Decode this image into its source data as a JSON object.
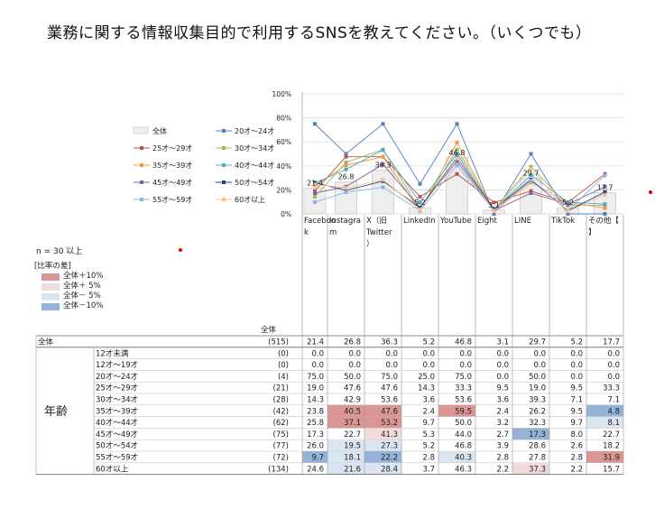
{
  "title": "業務に関する情報収集目的で利用するSNSを教えてください。（いくつでも）",
  "n_note": "n = 30 以上",
  "diff_legend": {
    "title": "[比率の差]",
    "items": [
      {
        "label": "全体＋10%",
        "color": "#d99694"
      },
      {
        "label": "全体＋ 5%",
        "color": "#f2dcdb"
      },
      {
        "label": "全体－ 5%",
        "color": "#dbe5f1"
      },
      {
        "label": "全体－10%",
        "color": "#95b3d7"
      }
    ]
  },
  "row_header": "全体",
  "group_label": "年齢",
  "chart_data": {
    "type": "bar",
    "categories": [
      "Facebook",
      "Instagram",
      "X（旧Twitter）",
      "LinkedIn",
      "YouTube",
      "Eight",
      "LINE",
      "TikTok",
      "その他【】"
    ],
    "category_display": [
      "Faceboo|k",
      "Instagra|m",
      "X（旧|Twitter|）",
      "LinkedIn",
      "YouTube",
      "Eight",
      "LINE",
      "TikTok",
      "その他【|】"
    ],
    "ylim": [
      0,
      100
    ],
    "yticks": [
      "0%",
      "20%",
      "40%",
      "60%",
      "80%",
      "100%"
    ],
    "bar_series": {
      "name": "全体",
      "n": "(515)",
      "values": [
        21.4,
        26.8,
        36.3,
        5.2,
        46.8,
        3.1,
        29.7,
        5.2,
        17.7
      ],
      "color": "#eeeeee"
    },
    "line_series": [
      {
        "name": "20才～24才",
        "color": "#4f81bd",
        "values": [
          75.0,
          50.0,
          75.0,
          25.0,
          75.0,
          0.0,
          50.0,
          0.0,
          0.0
        ]
      },
      {
        "name": "25才～29才",
        "color": "#c0504d",
        "values": [
          19.0,
          47.6,
          47.6,
          14.3,
          33.3,
          9.5,
          19.0,
          9.5,
          33.3
        ]
      },
      {
        "name": "30才～34才",
        "color": "#9bbb59",
        "values": [
          14.3,
          42.9,
          53.6,
          3.6,
          53.6,
          3.6,
          39.3,
          7.1,
          7.1
        ]
      },
      {
        "name": "35才～39才",
        "color": "#f79646",
        "values": [
          23.8,
          40.5,
          47.6,
          2.4,
          59.5,
          2.4,
          26.2,
          9.5,
          4.8
        ]
      },
      {
        "name": "40才～44才",
        "color": "#4bacc6",
        "values": [
          25.8,
          37.1,
          53.2,
          9.7,
          50.0,
          3.2,
          32.3,
          9.7,
          8.1
        ]
      },
      {
        "name": "45才～49才",
        "color": "#8064a2",
        "values": [
          17.3,
          22.7,
          41.3,
          5.3,
          44.0,
          2.7,
          17.3,
          8.0,
          22.7
        ]
      },
      {
        "name": "50才～54才",
        "color": "#1f497d",
        "values": [
          26.0,
          19.5,
          27.3,
          5.2,
          46.8,
          3.9,
          28.6,
          2.6,
          18.2
        ]
      },
      {
        "name": "55才～59才",
        "color": "#8db3e2",
        "values": [
          9.7,
          18.1,
          22.2,
          2.8,
          40.3,
          2.8,
          27.8,
          2.8,
          31.9
        ]
      },
      {
        "name": "60才以上",
        "color": "#fac090",
        "values": [
          24.6,
          21.6,
          28.4,
          3.7,
          46.3,
          2.2,
          37.3,
          2.2,
          15.7
        ]
      }
    ]
  },
  "table_rows": [
    {
      "label": "12才未満",
      "n": "(0)",
      "values": [
        "0.0",
        "0.0",
        "0.0",
        "0.0",
        "0.0",
        "0.0",
        "0.0",
        "0.0",
        "0.0"
      ],
      "hl": [
        "",
        "",
        "",
        "",
        "",
        "",
        "",
        "",
        ""
      ]
    },
    {
      "label": "12才～19才",
      "n": "(0)",
      "values": [
        "0.0",
        "0.0",
        "0.0",
        "0.0",
        "0.0",
        "0.0",
        "0.0",
        "0.0",
        "0.0"
      ],
      "hl": [
        "",
        "",
        "",
        "",
        "",
        "",
        "",
        "",
        ""
      ]
    },
    {
      "label": "20才～24才",
      "n": "(4)",
      "values": [
        "75.0",
        "50.0",
        "75.0",
        "25.0",
        "75.0",
        "0.0",
        "50.0",
        "0.0",
        "0.0"
      ],
      "hl": [
        "",
        "",
        "",
        "",
        "",
        "",
        "",
        "",
        ""
      ]
    },
    {
      "label": "25才～29才",
      "n": "(21)",
      "values": [
        "19.0",
        "47.6",
        "47.6",
        "14.3",
        "33.3",
        "9.5",
        "19.0",
        "9.5",
        "33.3"
      ],
      "hl": [
        "",
        "",
        "",
        "",
        "",
        "",
        "",
        "",
        ""
      ]
    },
    {
      "label": "30才～34才",
      "n": "(28)",
      "values": [
        "14.3",
        "42.9",
        "53.6",
        "3.6",
        "53.6",
        "3.6",
        "39.3",
        "7.1",
        "7.1"
      ],
      "hl": [
        "",
        "",
        "",
        "",
        "",
        "",
        "",
        "",
        ""
      ]
    },
    {
      "label": "35才～39才",
      "n": "(42)",
      "values": [
        "23.8",
        "40.5",
        "47.6",
        "2.4",
        "59.5",
        "2.4",
        "26.2",
        "9.5",
        "4.8"
      ],
      "hl": [
        "",
        "p10",
        "p10",
        "",
        "p10",
        "",
        "",
        "",
        "m10"
      ]
    },
    {
      "label": "40才～44才",
      "n": "(62)",
      "values": [
        "25.8",
        "37.1",
        "53.2",
        "9.7",
        "50.0",
        "3.2",
        "32.3",
        "9.7",
        "8.1"
      ],
      "hl": [
        "",
        "p10",
        "p10",
        "",
        "",
        "",
        "",
        "",
        "m5"
      ]
    },
    {
      "label": "45才～49才",
      "n": "(75)",
      "values": [
        "17.3",
        "22.7",
        "41.3",
        "5.3",
        "44.0",
        "2.7",
        "17.3",
        "8.0",
        "22.7"
      ],
      "hl": [
        "",
        "",
        "p5",
        "",
        "",
        "",
        "m10",
        "",
        ""
      ]
    },
    {
      "label": "50才～54才",
      "n": "(77)",
      "values": [
        "26.0",
        "19.5",
        "27.3",
        "5.2",
        "46.8",
        "3.9",
        "28.6",
        "2.6",
        "18.2"
      ],
      "hl": [
        "",
        "m5",
        "m5",
        "",
        "",
        "",
        "",
        "",
        ""
      ]
    },
    {
      "label": "55才～59才",
      "n": "(72)",
      "values": [
        "9.7",
        "18.1",
        "22.2",
        "2.8",
        "40.3",
        "2.8",
        "27.8",
        "2.8",
        "31.9"
      ],
      "hl": [
        "m10",
        "m5",
        "m10",
        "",
        "m5",
        "",
        "",
        "",
        "p10"
      ]
    },
    {
      "label": "60才以上",
      "n": "(134)",
      "values": [
        "24.6",
        "21.6",
        "28.4",
        "3.7",
        "46.3",
        "2.2",
        "37.3",
        "2.2",
        "15.7"
      ],
      "hl": [
        "",
        "m5",
        "m5",
        "",
        "",
        "",
        "p5",
        "",
        ""
      ]
    }
  ]
}
